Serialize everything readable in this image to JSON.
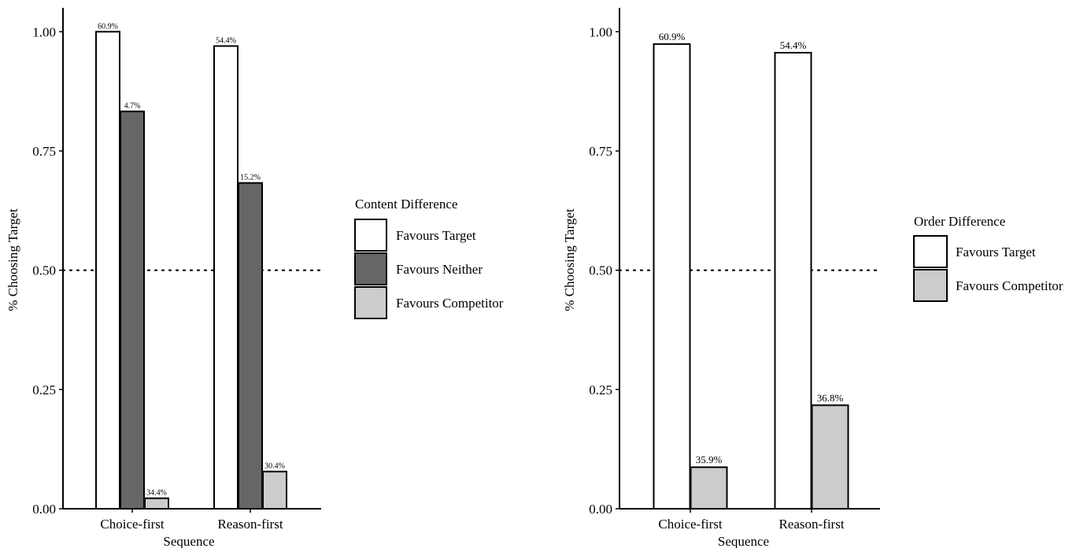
{
  "chart_data": [
    {
      "type": "bar",
      "xlabel": "Sequence",
      "ylabel": "% Choosing Target",
      "categories": [
        "Choice-first",
        "Reason-first"
      ],
      "ylim": [
        0,
        1.05
      ],
      "yticks": [
        0.0,
        0.25,
        0.5,
        0.75,
        1.0
      ],
      "ytick_labels": [
        "0.00",
        "0.25",
        "0.50",
        "0.75",
        "1.00"
      ],
      "reference_line": {
        "y": 0.5,
        "style": "dotted"
      },
      "grid": false,
      "legend": {
        "title": "Content Difference",
        "placement": "right"
      },
      "series": [
        {
          "name": "Favours Target",
          "color": "#ffffff",
          "values": [
            1.0,
            0.97
          ],
          "labels": [
            "60.9%",
            "54.4%"
          ]
        },
        {
          "name": "Favours Neither",
          "color": "#666666",
          "values": [
            0.833,
            0.683
          ],
          "labels": [
            "4.7%",
            "15.2%"
          ]
        },
        {
          "name": "Favours Competitor",
          "color": "#cccccc",
          "values": [
            0.022,
            0.078
          ],
          "labels": [
            "34.4%",
            "30.4%"
          ]
        }
      ]
    },
    {
      "type": "bar",
      "xlabel": "Sequence",
      "ylabel": "% Choosing Target",
      "categories": [
        "Choice-first",
        "Reason-first"
      ],
      "ylim": [
        0,
        1.05
      ],
      "yticks": [
        0.0,
        0.25,
        0.5,
        0.75,
        1.0
      ],
      "ytick_labels": [
        "0.00",
        "0.25",
        "0.50",
        "0.75",
        "1.00"
      ],
      "reference_line": {
        "y": 0.5,
        "style": "dotted"
      },
      "grid": false,
      "legend": {
        "title": "Order Difference",
        "placement": "right"
      },
      "series": [
        {
          "name": "Favours Target",
          "color": "#ffffff",
          "values": [
            0.974,
            0.956
          ],
          "labels": [
            "60.9%",
            "54.4%"
          ]
        },
        {
          "name": "Favours Competitor",
          "color": "#cccccc",
          "values": [
            0.087,
            0.217
          ],
          "labels": [
            "35.9%",
            "36.8%"
          ]
        }
      ]
    }
  ]
}
